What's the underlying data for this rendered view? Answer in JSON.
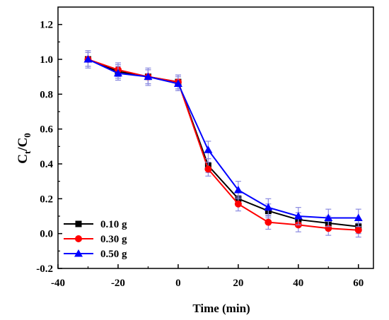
{
  "chart_data": {
    "type": "line",
    "xlabel": "Time (min)",
    "ylabel": {
      "main": "C",
      "sub1": "t",
      "mid": "/C",
      "sub2": "0"
    },
    "xlim": [
      -40,
      65
    ],
    "ylim": [
      -0.2,
      1.3
    ],
    "xticks": [
      -40,
      -20,
      0,
      20,
      40,
      60
    ],
    "xtick_labels": [
      "-40",
      "-20",
      "0",
      "20",
      "40",
      "60"
    ],
    "yticks": [
      -0.2,
      0.0,
      0.2,
      0.4,
      0.6,
      0.8,
      1.0,
      1.2
    ],
    "ytick_labels": [
      "-0.2",
      "0.0",
      "0.2",
      "0.4",
      "0.6",
      "0.8",
      "1.0",
      "1.2"
    ],
    "legend_position": "bottom-left",
    "x": [
      -30,
      -20,
      -10,
      0,
      10,
      20,
      30,
      40,
      50,
      60
    ],
    "series": [
      {
        "name": "0.10 g",
        "color": "#000000",
        "marker": "square",
        "values": [
          1.0,
          0.93,
          0.9,
          0.87,
          0.39,
          0.2,
          0.13,
          0.08,
          0.06,
          0.04
        ],
        "errors": [
          0.04,
          0.04,
          0.04,
          0.04,
          0.04,
          0.04,
          0.04,
          0.04,
          0.04,
          0.04
        ]
      },
      {
        "name": "0.30 g",
        "color": "#ff0000",
        "marker": "circle",
        "values": [
          1.0,
          0.94,
          0.9,
          0.87,
          0.37,
          0.17,
          0.065,
          0.05,
          0.03,
          0.02
        ],
        "errors": [
          0.04,
          0.04,
          0.04,
          0.04,
          0.04,
          0.04,
          0.04,
          0.04,
          0.04,
          0.04
        ]
      },
      {
        "name": "0.50 g",
        "color": "#0000ff",
        "marker": "triangle",
        "values": [
          1.0,
          0.92,
          0.9,
          0.86,
          0.48,
          0.25,
          0.15,
          0.1,
          0.09,
          0.09
        ],
        "errors": [
          0.05,
          0.04,
          0.05,
          0.04,
          0.05,
          0.05,
          0.05,
          0.05,
          0.05,
          0.05
        ]
      }
    ]
  }
}
